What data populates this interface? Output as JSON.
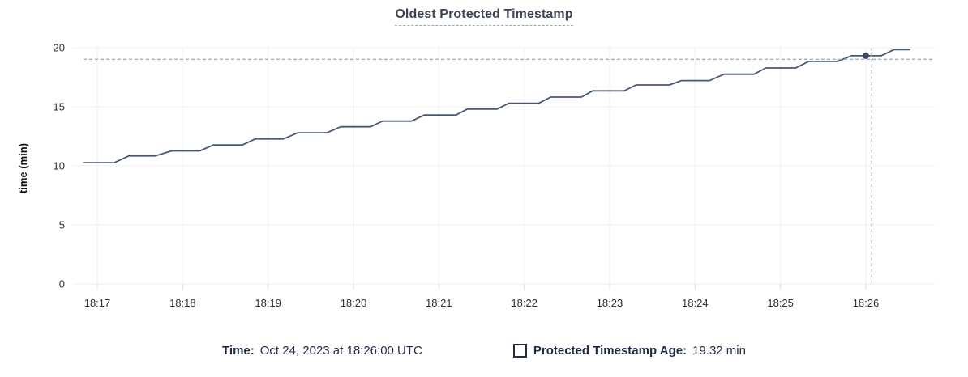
{
  "header": {
    "title": "Oldest Protected Timestamp"
  },
  "chart_data": {
    "type": "line",
    "title": "Oldest Protected Timestamp",
    "xlabel": "",
    "ylabel": "time (min)",
    "ylim": [
      0,
      20
    ],
    "y_ticks": [
      0,
      5,
      10,
      15,
      20
    ],
    "x_ticks": [
      {
        "minute": 0,
        "label": "18:17"
      },
      {
        "minute": 1,
        "label": "18:18"
      },
      {
        "minute": 2,
        "label": "18:19"
      },
      {
        "minute": 3,
        "label": "18:20"
      },
      {
        "minute": 4,
        "label": "18:21"
      },
      {
        "minute": 5,
        "label": "18:22"
      },
      {
        "minute": 6,
        "label": "18:23"
      },
      {
        "minute": 7,
        "label": "18:24"
      },
      {
        "minute": 8,
        "label": "18:25"
      },
      {
        "minute": 9,
        "label": "18:26"
      }
    ],
    "grid": true,
    "legend_position": "bottom",
    "series": [
      {
        "name": "Protected Timestamp Age",
        "color": "#475872",
        "points": [
          [
            -0.17,
            10.27
          ],
          [
            0.2,
            10.27
          ],
          [
            0.37,
            10.84
          ],
          [
            0.68,
            10.84
          ],
          [
            0.87,
            11.27
          ],
          [
            1.2,
            11.27
          ],
          [
            1.36,
            11.77
          ],
          [
            1.7,
            11.77
          ],
          [
            1.85,
            12.28
          ],
          [
            2.18,
            12.28
          ],
          [
            2.35,
            12.8
          ],
          [
            2.69,
            12.8
          ],
          [
            2.85,
            13.31
          ],
          [
            3.2,
            13.31
          ],
          [
            3.34,
            13.79
          ],
          [
            3.68,
            13.79
          ],
          [
            3.83,
            14.3
          ],
          [
            4.2,
            14.3
          ],
          [
            4.33,
            14.8
          ],
          [
            4.68,
            14.8
          ],
          [
            4.82,
            15.3
          ],
          [
            5.17,
            15.3
          ],
          [
            5.31,
            15.82
          ],
          [
            5.67,
            15.82
          ],
          [
            5.8,
            16.35
          ],
          [
            6.17,
            16.35
          ],
          [
            6.31,
            16.85
          ],
          [
            6.7,
            16.85
          ],
          [
            6.84,
            17.22
          ],
          [
            7.17,
            17.22
          ],
          [
            7.34,
            17.76
          ],
          [
            7.69,
            17.76
          ],
          [
            7.83,
            18.29
          ],
          [
            8.18,
            18.29
          ],
          [
            8.33,
            18.84
          ],
          [
            8.67,
            18.84
          ],
          [
            8.83,
            19.32
          ],
          [
            9.18,
            19.32
          ],
          [
            9.33,
            19.84
          ],
          [
            9.52,
            19.84
          ]
        ]
      }
    ],
    "crosshair": {
      "vline_minute": 9.07,
      "hline_value": 19.02,
      "dot_minute": 9.0,
      "dot_value": 19.32,
      "dash_color": "#9fb1c1",
      "dot_color": "#3a4a63"
    },
    "grid_color": "#efefef",
    "tick_mark_color": "#dddddd"
  },
  "legend": {
    "time_label": "Time:",
    "time_value": "Oct 24, 2023 at 18:26:00 UTC",
    "series_checkbox": "unchecked",
    "series_label": "Protected Timestamp Age:",
    "series_value": "19.32 min"
  }
}
